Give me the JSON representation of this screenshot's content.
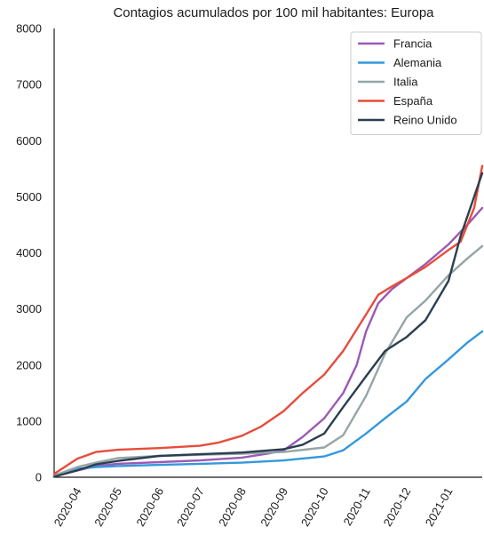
{
  "chart_data": {
    "type": "line",
    "title": "Contagios acumulados por 100 mil habitantes: Europa",
    "xlabel": "",
    "ylabel": "",
    "x_start": "2020-03-15",
    "x_end": "2021-01-26",
    "ylim": [
      0,
      8000
    ],
    "y_ticks": [
      "0",
      "1000",
      "2000",
      "3000",
      "4000",
      "5000",
      "6000",
      "7000",
      "8000"
    ],
    "x_ticks": [
      {
        "date": "2020-04-01",
        "label": "2020-04"
      },
      {
        "date": "2020-05-01",
        "label": "2020-05"
      },
      {
        "date": "2020-06-01",
        "label": "2020-06"
      },
      {
        "date": "2020-07-01",
        "label": "2020-07"
      },
      {
        "date": "2020-08-01",
        "label": "2020-08"
      },
      {
        "date": "2020-09-01",
        "label": "2020-09"
      },
      {
        "date": "2020-10-01",
        "label": "2020-10"
      },
      {
        "date": "2020-11-01",
        "label": "2020-11"
      },
      {
        "date": "2020-12-01",
        "label": "2020-12"
      },
      {
        "date": "2021-01-01",
        "label": "2021-01"
      }
    ],
    "grid": false,
    "legend_position": "top-right",
    "series": [
      {
        "name": "Francia",
        "color": "#9b59b6",
        "points": [
          [
            "2020-03-15",
            20
          ],
          [
            "2020-04-01",
            120
          ],
          [
            "2020-04-15",
            200
          ],
          [
            "2020-05-01",
            240
          ],
          [
            "2020-06-01",
            270
          ],
          [
            "2020-07-01",
            300
          ],
          [
            "2020-08-01",
            350
          ],
          [
            "2020-08-20",
            420
          ],
          [
            "2020-09-01",
            480
          ],
          [
            "2020-09-15",
            720
          ],
          [
            "2020-10-01",
            1050
          ],
          [
            "2020-10-15",
            1500
          ],
          [
            "2020-10-25",
            2000
          ],
          [
            "2020-11-01",
            2600
          ],
          [
            "2020-11-10",
            3100
          ],
          [
            "2020-11-20",
            3350
          ],
          [
            "2020-12-01",
            3550
          ],
          [
            "2020-12-15",
            3800
          ],
          [
            "2021-01-01",
            4150
          ],
          [
            "2021-01-15",
            4500
          ],
          [
            "2021-01-26",
            4800
          ]
        ]
      },
      {
        "name": "Alemania",
        "color": "#3498db",
        "points": [
          [
            "2020-03-15",
            20
          ],
          [
            "2020-04-01",
            150
          ],
          [
            "2020-04-15",
            180
          ],
          [
            "2020-05-01",
            200
          ],
          [
            "2020-06-01",
            220
          ],
          [
            "2020-07-01",
            240
          ],
          [
            "2020-08-01",
            260
          ],
          [
            "2020-09-01",
            300
          ],
          [
            "2020-10-01",
            370
          ],
          [
            "2020-10-15",
            480
          ],
          [
            "2020-11-01",
            780
          ],
          [
            "2020-11-15",
            1050
          ],
          [
            "2020-12-01",
            1350
          ],
          [
            "2020-12-15",
            1750
          ],
          [
            "2021-01-01",
            2100
          ],
          [
            "2021-01-15",
            2400
          ],
          [
            "2021-01-26",
            2600
          ]
        ]
      },
      {
        "name": "Italia",
        "color": "#95a5a6",
        "points": [
          [
            "2020-03-15",
            30
          ],
          [
            "2020-04-01",
            180
          ],
          [
            "2020-04-15",
            260
          ],
          [
            "2020-05-01",
            340
          ],
          [
            "2020-06-01",
            380
          ],
          [
            "2020-07-01",
            400
          ],
          [
            "2020-08-01",
            420
          ],
          [
            "2020-09-01",
            450
          ],
          [
            "2020-10-01",
            530
          ],
          [
            "2020-10-15",
            750
          ],
          [
            "2020-11-01",
            1450
          ],
          [
            "2020-11-15",
            2200
          ],
          [
            "2020-12-01",
            2850
          ],
          [
            "2020-12-15",
            3150
          ],
          [
            "2021-01-01",
            3600
          ],
          [
            "2021-01-15",
            3900
          ],
          [
            "2021-01-26",
            4120
          ]
        ]
      },
      {
        "name": "España",
        "color": "#e74c3c",
        "points": [
          [
            "2020-03-15",
            60
          ],
          [
            "2020-04-01",
            330
          ],
          [
            "2020-04-15",
            450
          ],
          [
            "2020-05-01",
            490
          ],
          [
            "2020-06-01",
            520
          ],
          [
            "2020-07-01",
            560
          ],
          [
            "2020-07-15",
            620
          ],
          [
            "2020-08-01",
            740
          ],
          [
            "2020-08-15",
            900
          ],
          [
            "2020-09-01",
            1180
          ],
          [
            "2020-09-15",
            1500
          ],
          [
            "2020-10-01",
            1830
          ],
          [
            "2020-10-15",
            2250
          ],
          [
            "2020-11-01",
            2900
          ],
          [
            "2020-11-10",
            3250
          ],
          [
            "2020-11-20",
            3400
          ],
          [
            "2020-12-01",
            3550
          ],
          [
            "2020-12-15",
            3750
          ],
          [
            "2021-01-01",
            4050
          ],
          [
            "2021-01-10",
            4200
          ],
          [
            "2021-01-20",
            4800
          ],
          [
            "2021-01-26",
            5550
          ]
        ]
      },
      {
        "name": "Reino Unido",
        "color": "#2c3e50",
        "points": [
          [
            "2020-03-15",
            10
          ],
          [
            "2020-04-01",
            120
          ],
          [
            "2020-04-15",
            230
          ],
          [
            "2020-05-01",
            290
          ],
          [
            "2020-06-01",
            380
          ],
          [
            "2020-07-01",
            410
          ],
          [
            "2020-08-01",
            440
          ],
          [
            "2020-09-01",
            500
          ],
          [
            "2020-09-15",
            580
          ],
          [
            "2020-10-01",
            780
          ],
          [
            "2020-10-15",
            1250
          ],
          [
            "2020-11-01",
            1800
          ],
          [
            "2020-11-15",
            2250
          ],
          [
            "2020-12-01",
            2500
          ],
          [
            "2020-12-15",
            2800
          ],
          [
            "2021-01-01",
            3500
          ],
          [
            "2021-01-10",
            4300
          ],
          [
            "2021-01-20",
            5000
          ],
          [
            "2021-01-26",
            5420
          ]
        ]
      }
    ]
  }
}
